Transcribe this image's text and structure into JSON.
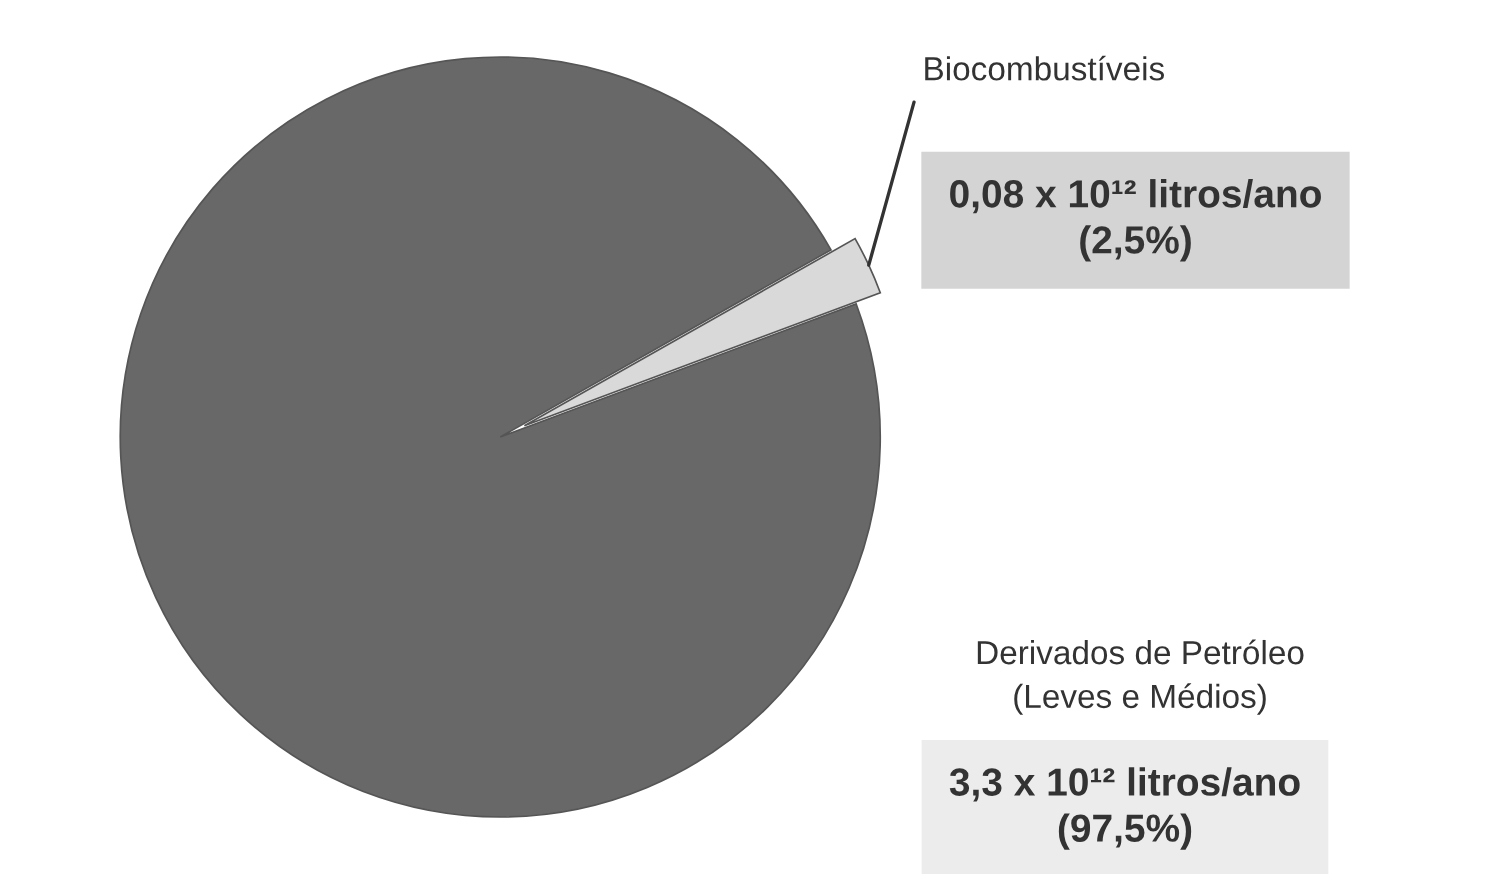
{
  "chart_data": {
    "type": "pie",
    "categories": [
      "Biocombustíveis",
      "Derivados de Petróleo\n(Leves e Médios)"
    ],
    "values": [
      2.5,
      97.5
    ],
    "colors": [
      "#d9d9d9",
      "#686868"
    ],
    "value_labels": [
      "0,08 x 10¹² litros/ano\n(2,5%)",
      "3,3 x 10¹² litros/ano\n(97,5%)"
    ]
  }
}
